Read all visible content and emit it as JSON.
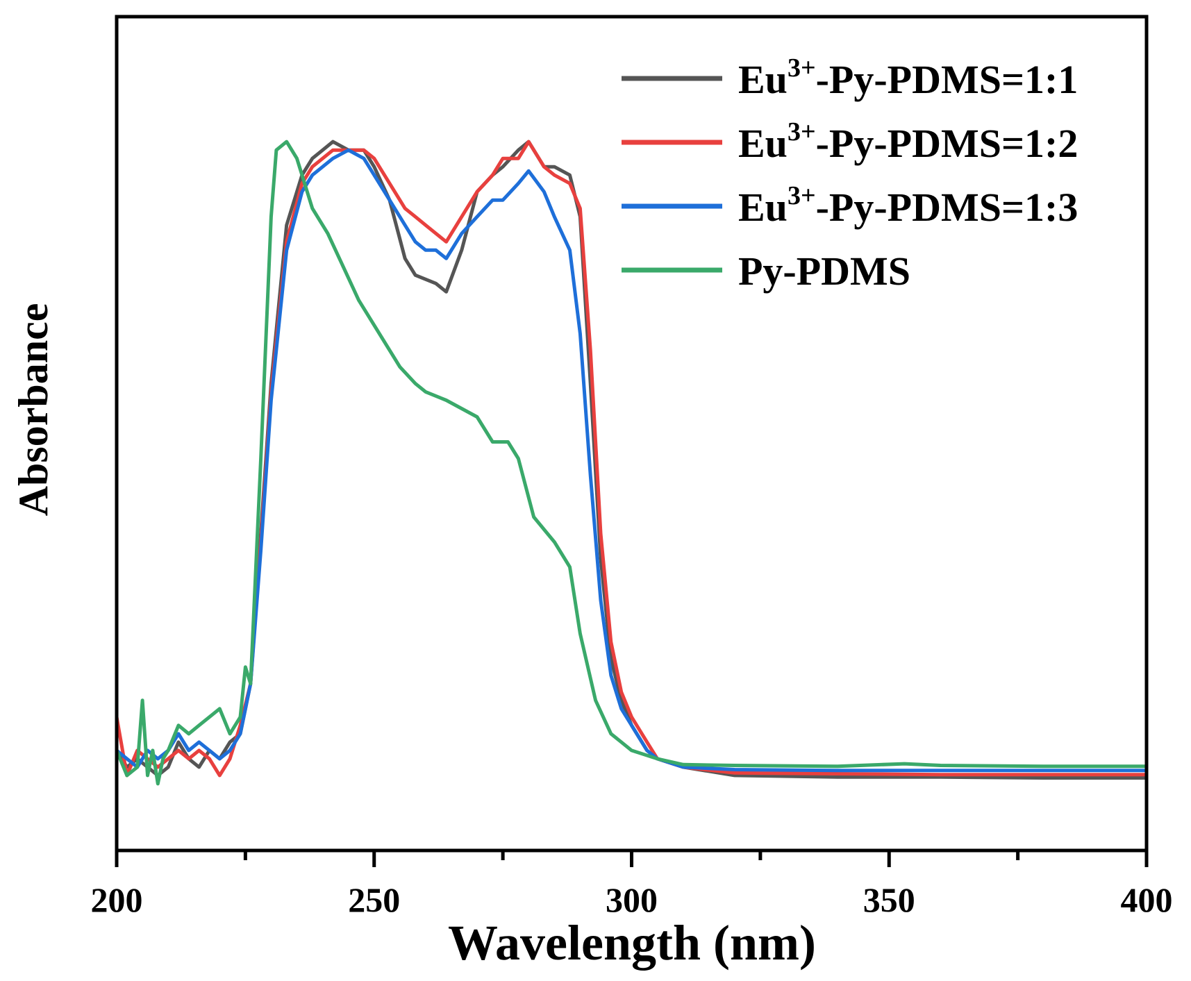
{
  "chart_data": {
    "type": "line",
    "title": "",
    "xlabel": "Wavelength (nm)",
    "ylabel": "Absorbance",
    "xlim": [
      200,
      400
    ],
    "ylim": [
      0,
      1
    ],
    "xticks": [
      200,
      250,
      300,
      350,
      400
    ],
    "xtick_labels": [
      "200",
      "250",
      "300",
      "350",
      "400"
    ],
    "y_ticks_shown": false,
    "grid": false,
    "legend_position": "top-right",
    "series": [
      {
        "name": "Eu³⁺-Py-PDMS=1:1",
        "color": "#555555",
        "x": [
          200,
          202,
          204,
          206,
          208,
          210,
          212,
          214,
          216,
          218,
          220,
          222,
          224,
          226,
          228,
          230,
          233,
          236,
          238,
          240,
          242,
          245,
          248,
          250,
          253,
          256,
          258,
          262,
          264,
          267,
          270,
          273,
          275,
          278,
          280,
          283,
          285,
          288,
          290,
          292,
          294,
          296,
          298,
          300,
          303,
          305,
          310,
          320,
          340,
          360,
          380,
          400
        ],
        "y": [
          0.12,
          0.1,
          0.11,
          0.1,
          0.09,
          0.1,
          0.13,
          0.11,
          0.1,
          0.12,
          0.11,
          0.13,
          0.14,
          0.2,
          0.38,
          0.56,
          0.75,
          0.81,
          0.83,
          0.84,
          0.85,
          0.84,
          0.84,
          0.82,
          0.78,
          0.71,
          0.69,
          0.68,
          0.67,
          0.72,
          0.79,
          0.81,
          0.82,
          0.84,
          0.85,
          0.82,
          0.82,
          0.81,
          0.76,
          0.56,
          0.35,
          0.23,
          0.18,
          0.15,
          0.12,
          0.11,
          0.1,
          0.09,
          0.088,
          0.088,
          0.087,
          0.087
        ]
      },
      {
        "name": "Eu³⁺-Py-PDMS=1:2",
        "color": "#e8403e",
        "x": [
          200,
          202,
          204,
          206,
          208,
          210,
          212,
          214,
          216,
          218,
          220,
          222,
          224,
          226,
          228,
          230,
          233,
          236,
          238,
          240,
          242,
          245,
          248,
          250,
          253,
          256,
          258,
          260,
          262,
          264,
          267,
          270,
          273,
          275,
          278,
          280,
          283,
          285,
          288,
          290,
          292,
          294,
          296,
          298,
          300,
          303,
          305,
          310,
          320,
          340,
          360,
          380,
          400
        ],
        "y": [
          0.16,
          0.09,
          0.12,
          0.11,
          0.1,
          0.11,
          0.12,
          0.11,
          0.12,
          0.11,
          0.09,
          0.11,
          0.15,
          0.2,
          0.37,
          0.55,
          0.73,
          0.8,
          0.82,
          0.83,
          0.84,
          0.84,
          0.84,
          0.83,
          0.8,
          0.77,
          0.76,
          0.75,
          0.74,
          0.73,
          0.76,
          0.79,
          0.81,
          0.83,
          0.83,
          0.85,
          0.82,
          0.81,
          0.8,
          0.77,
          0.6,
          0.38,
          0.25,
          0.19,
          0.16,
          0.13,
          0.11,
          0.1,
          0.093,
          0.092,
          0.091,
          0.091,
          0.091
        ]
      },
      {
        "name": "Eu³⁺-Py-PDMS=1:3",
        "color": "#1e6fd9",
        "x": [
          200,
          202,
          204,
          206,
          208,
          210,
          212,
          214,
          216,
          218,
          220,
          222,
          224,
          226,
          228,
          230,
          233,
          236,
          238,
          240,
          242,
          245,
          248,
          250,
          253,
          256,
          258,
          260,
          262,
          264,
          267,
          270,
          273,
          275,
          278,
          280,
          283,
          285,
          288,
          290,
          292,
          294,
          296,
          298,
          300,
          303,
          305,
          310,
          320,
          340,
          360,
          380,
          400
        ],
        "y": [
          0.12,
          0.11,
          0.1,
          0.12,
          0.11,
          0.12,
          0.14,
          0.12,
          0.13,
          0.12,
          0.11,
          0.12,
          0.14,
          0.2,
          0.36,
          0.54,
          0.72,
          0.79,
          0.81,
          0.82,
          0.83,
          0.84,
          0.83,
          0.81,
          0.78,
          0.75,
          0.73,
          0.72,
          0.72,
          0.71,
          0.74,
          0.76,
          0.78,
          0.78,
          0.8,
          0.815,
          0.79,
          0.76,
          0.72,
          0.62,
          0.45,
          0.3,
          0.21,
          0.17,
          0.15,
          0.12,
          0.11,
          0.1,
          0.097,
          0.096,
          0.096,
          0.096,
          0.096
        ]
      },
      {
        "name": "Py-PDMS",
        "color": "#3aa96a",
        "x": [
          200,
          202,
          204,
          205,
          206,
          207,
          208,
          209,
          210,
          212,
          214,
          216,
          218,
          220,
          222,
          224,
          225,
          226,
          228,
          230,
          231,
          233,
          235,
          238,
          241,
          244,
          247,
          250,
          253,
          255,
          258,
          260,
          264,
          267,
          270,
          273,
          276,
          278,
          281,
          283,
          285,
          288,
          290,
          293,
          296,
          300,
          305,
          310,
          320,
          340,
          353,
          360,
          380,
          400
        ],
        "y": [
          0.12,
          0.09,
          0.1,
          0.18,
          0.09,
          0.12,
          0.08,
          0.11,
          0.12,
          0.15,
          0.14,
          0.15,
          0.16,
          0.17,
          0.14,
          0.16,
          0.22,
          0.2,
          0.47,
          0.76,
          0.84,
          0.85,
          0.83,
          0.77,
          0.74,
          0.7,
          0.66,
          0.63,
          0.6,
          0.58,
          0.56,
          0.55,
          0.54,
          0.53,
          0.52,
          0.49,
          0.49,
          0.47,
          0.4,
          0.385,
          0.37,
          0.34,
          0.26,
          0.18,
          0.14,
          0.12,
          0.11,
          0.103,
          0.102,
          0.101,
          0.104,
          0.102,
          0.101,
          0.101
        ]
      }
    ]
  }
}
